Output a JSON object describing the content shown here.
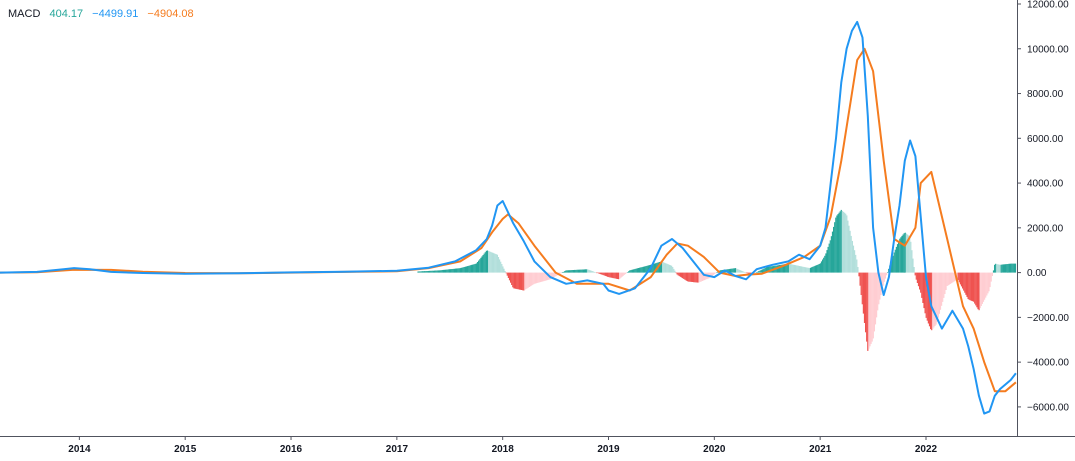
{
  "legend": {
    "label": "MACD",
    "histogram_value": "404.17",
    "macd_value": "−4499.91",
    "signal_value": "−4904.08"
  },
  "colors": {
    "macd_line": "#2196f3",
    "signal_line": "#f57c1f",
    "hist_up_strong": "#26a69a",
    "hist_up_weak": "#b2dfdb",
    "hist_down_strong": "#ef5350",
    "hist_down_weak": "#ffcdd2",
    "legend_hist": "#26a69a"
  },
  "chart_data": {
    "type": "line",
    "title": "",
    "xlabel": "",
    "ylabel": "",
    "x_ticks": [
      "2014",
      "2015",
      "2016",
      "2017",
      "2018",
      "2019",
      "2020",
      "2021",
      "2022"
    ],
    "y_ticks": [
      "12000.00",
      "10000.00",
      "8000.00",
      "6000.00",
      "4000.00",
      "2000.00",
      "0.00",
      "−2000.00",
      "−4000.00",
      "−6000.00"
    ],
    "ylim": [
      -7300,
      12000
    ],
    "xlim": [
      2013.25,
      2022.86
    ],
    "series": [
      {
        "key": "macd",
        "x": [
          2013.25,
          2013.6,
          2013.85,
          2013.95,
          2014.1,
          2014.3,
          2014.6,
          2015.0,
          2015.5,
          2016.0,
          2016.5,
          2017.0,
          2017.3,
          2017.55,
          2017.75,
          2017.85,
          2017.9,
          2017.95,
          2018.0,
          2018.1,
          2018.2,
          2018.3,
          2018.45,
          2018.6,
          2018.8,
          2018.95,
          2019.0,
          2019.1,
          2019.25,
          2019.4,
          2019.5,
          2019.6,
          2019.7,
          2019.8,
          2019.9,
          2020.0,
          2020.1,
          2020.2,
          2020.3,
          2020.4,
          2020.55,
          2020.7,
          2020.8,
          2020.9,
          2021.0,
          2021.05,
          2021.1,
          2021.15,
          2021.2,
          2021.25,
          2021.3,
          2021.35,
          2021.4,
          2021.45,
          2021.5,
          2021.55,
          2021.6,
          2021.65,
          2021.7,
          2021.75,
          2021.8,
          2021.85,
          2021.9,
          2021.95,
          2022.0,
          2022.05,
          2022.15,
          2022.25,
          2022.35,
          2022.4,
          2022.45,
          2022.5,
          2022.55,
          2022.6,
          2022.65,
          2022.7,
          2022.75,
          2022.8,
          2022.85
        ],
        "values": [
          0,
          30,
          150,
          200,
          150,
          30,
          -20,
          -50,
          -30,
          10,
          40,
          80,
          220,
          500,
          1000,
          1500,
          2100,
          3000,
          3200,
          2200,
          1400,
          500,
          -200,
          -500,
          -350,
          -500,
          -800,
          -950,
          -700,
          200,
          1200,
          1500,
          1100,
          500,
          -100,
          -200,
          100,
          -150,
          -300,
          150,
          350,
          500,
          800,
          600,
          1200,
          2000,
          4000,
          6000,
          8500,
          10000,
          10800,
          11200,
          10500,
          7000,
          2000,
          0,
          -1000,
          -200,
          1500,
          3000,
          5000,
          5900,
          5200,
          2500,
          -200,
          -1500,
          -2500,
          -1700,
          -2500,
          -3300,
          -4300,
          -5500,
          -6300,
          -6200,
          -5500,
          -5200,
          -5000,
          -4800,
          -4500
        ]
      },
      {
        "key": "signal",
        "x": [
          2013.25,
          2013.6,
          2013.95,
          2014.3,
          2014.6,
          2015.0,
          2015.5,
          2016.0,
          2016.5,
          2017.0,
          2017.3,
          2017.6,
          2017.8,
          2017.9,
          2018.0,
          2018.05,
          2018.15,
          2018.3,
          2018.5,
          2018.7,
          2019.0,
          2019.2,
          2019.4,
          2019.55,
          2019.65,
          2019.75,
          2019.9,
          2020.05,
          2020.2,
          2020.3,
          2020.45,
          2020.65,
          2020.85,
          2021.0,
          2021.1,
          2021.2,
          2021.3,
          2021.35,
          2021.42,
          2021.5,
          2021.6,
          2021.7,
          2021.8,
          2021.9,
          2021.95,
          2022.05,
          2022.2,
          2022.35,
          2022.45,
          2022.55,
          2022.65,
          2022.75,
          2022.85
        ],
        "values": [
          0,
          20,
          130,
          120,
          40,
          -20,
          -30,
          0,
          30,
          60,
          200,
          500,
          1100,
          1800,
          2400,
          2600,
          2200,
          1200,
          0,
          -500,
          -500,
          -800,
          -200,
          800,
          1300,
          1200,
          700,
          0,
          -150,
          -100,
          -50,
          300,
          700,
          1200,
          2500,
          5000,
          8000,
          9500,
          10000,
          9000,
          5000,
          1500,
          1200,
          2000,
          4000,
          4500,
          1500,
          -1500,
          -2500,
          -4000,
          -5300,
          -5300,
          -4900
        ]
      },
      {
        "key": "histogram",
        "x": [
          2017.2,
          2017.4,
          2017.6,
          2017.75,
          2017.85,
          2017.95,
          2018.05,
          2018.1,
          2018.2,
          2018.3,
          2018.45,
          2018.6,
          2018.8,
          2019.0,
          2019.1,
          2019.2,
          2019.4,
          2019.5,
          2019.6,
          2019.65,
          2019.75,
          2019.85,
          2019.95,
          2020.05,
          2020.2,
          2020.35,
          2020.5,
          2020.7,
          2020.9,
          2021.0,
          2021.05,
          2021.1,
          2021.15,
          2021.2,
          2021.25,
          2021.3,
          2021.35,
          2021.4,
          2021.45,
          2021.5,
          2021.55,
          2021.6,
          2021.65,
          2021.7,
          2021.75,
          2021.8,
          2021.85,
          2021.9,
          2021.95,
          2022.0,
          2022.05,
          2022.1,
          2022.2,
          2022.3,
          2022.4,
          2022.45,
          2022.5,
          2022.6,
          2022.65,
          2022.7,
          2022.8,
          2022.85
        ],
        "values": [
          50,
          100,
          200,
          400,
          1000,
          800,
          -200,
          -700,
          -800,
          -500,
          -300,
          100,
          150,
          -200,
          -300,
          100,
          350,
          500,
          300,
          -100,
          -400,
          -450,
          -250,
          100,
          200,
          -100,
          250,
          400,
          200,
          400,
          800,
          1500,
          2500,
          2800,
          2600,
          1500,
          500,
          -1500,
          -3500,
          -3000,
          -1500,
          -500,
          200,
          900,
          1500,
          1800,
          1600,
          -200,
          -900,
          -2000,
          -2600,
          -2300,
          -600,
          -300,
          -1200,
          -1300,
          -1700,
          -800,
          400,
          350,
          400,
          404
        ]
      }
    ]
  }
}
